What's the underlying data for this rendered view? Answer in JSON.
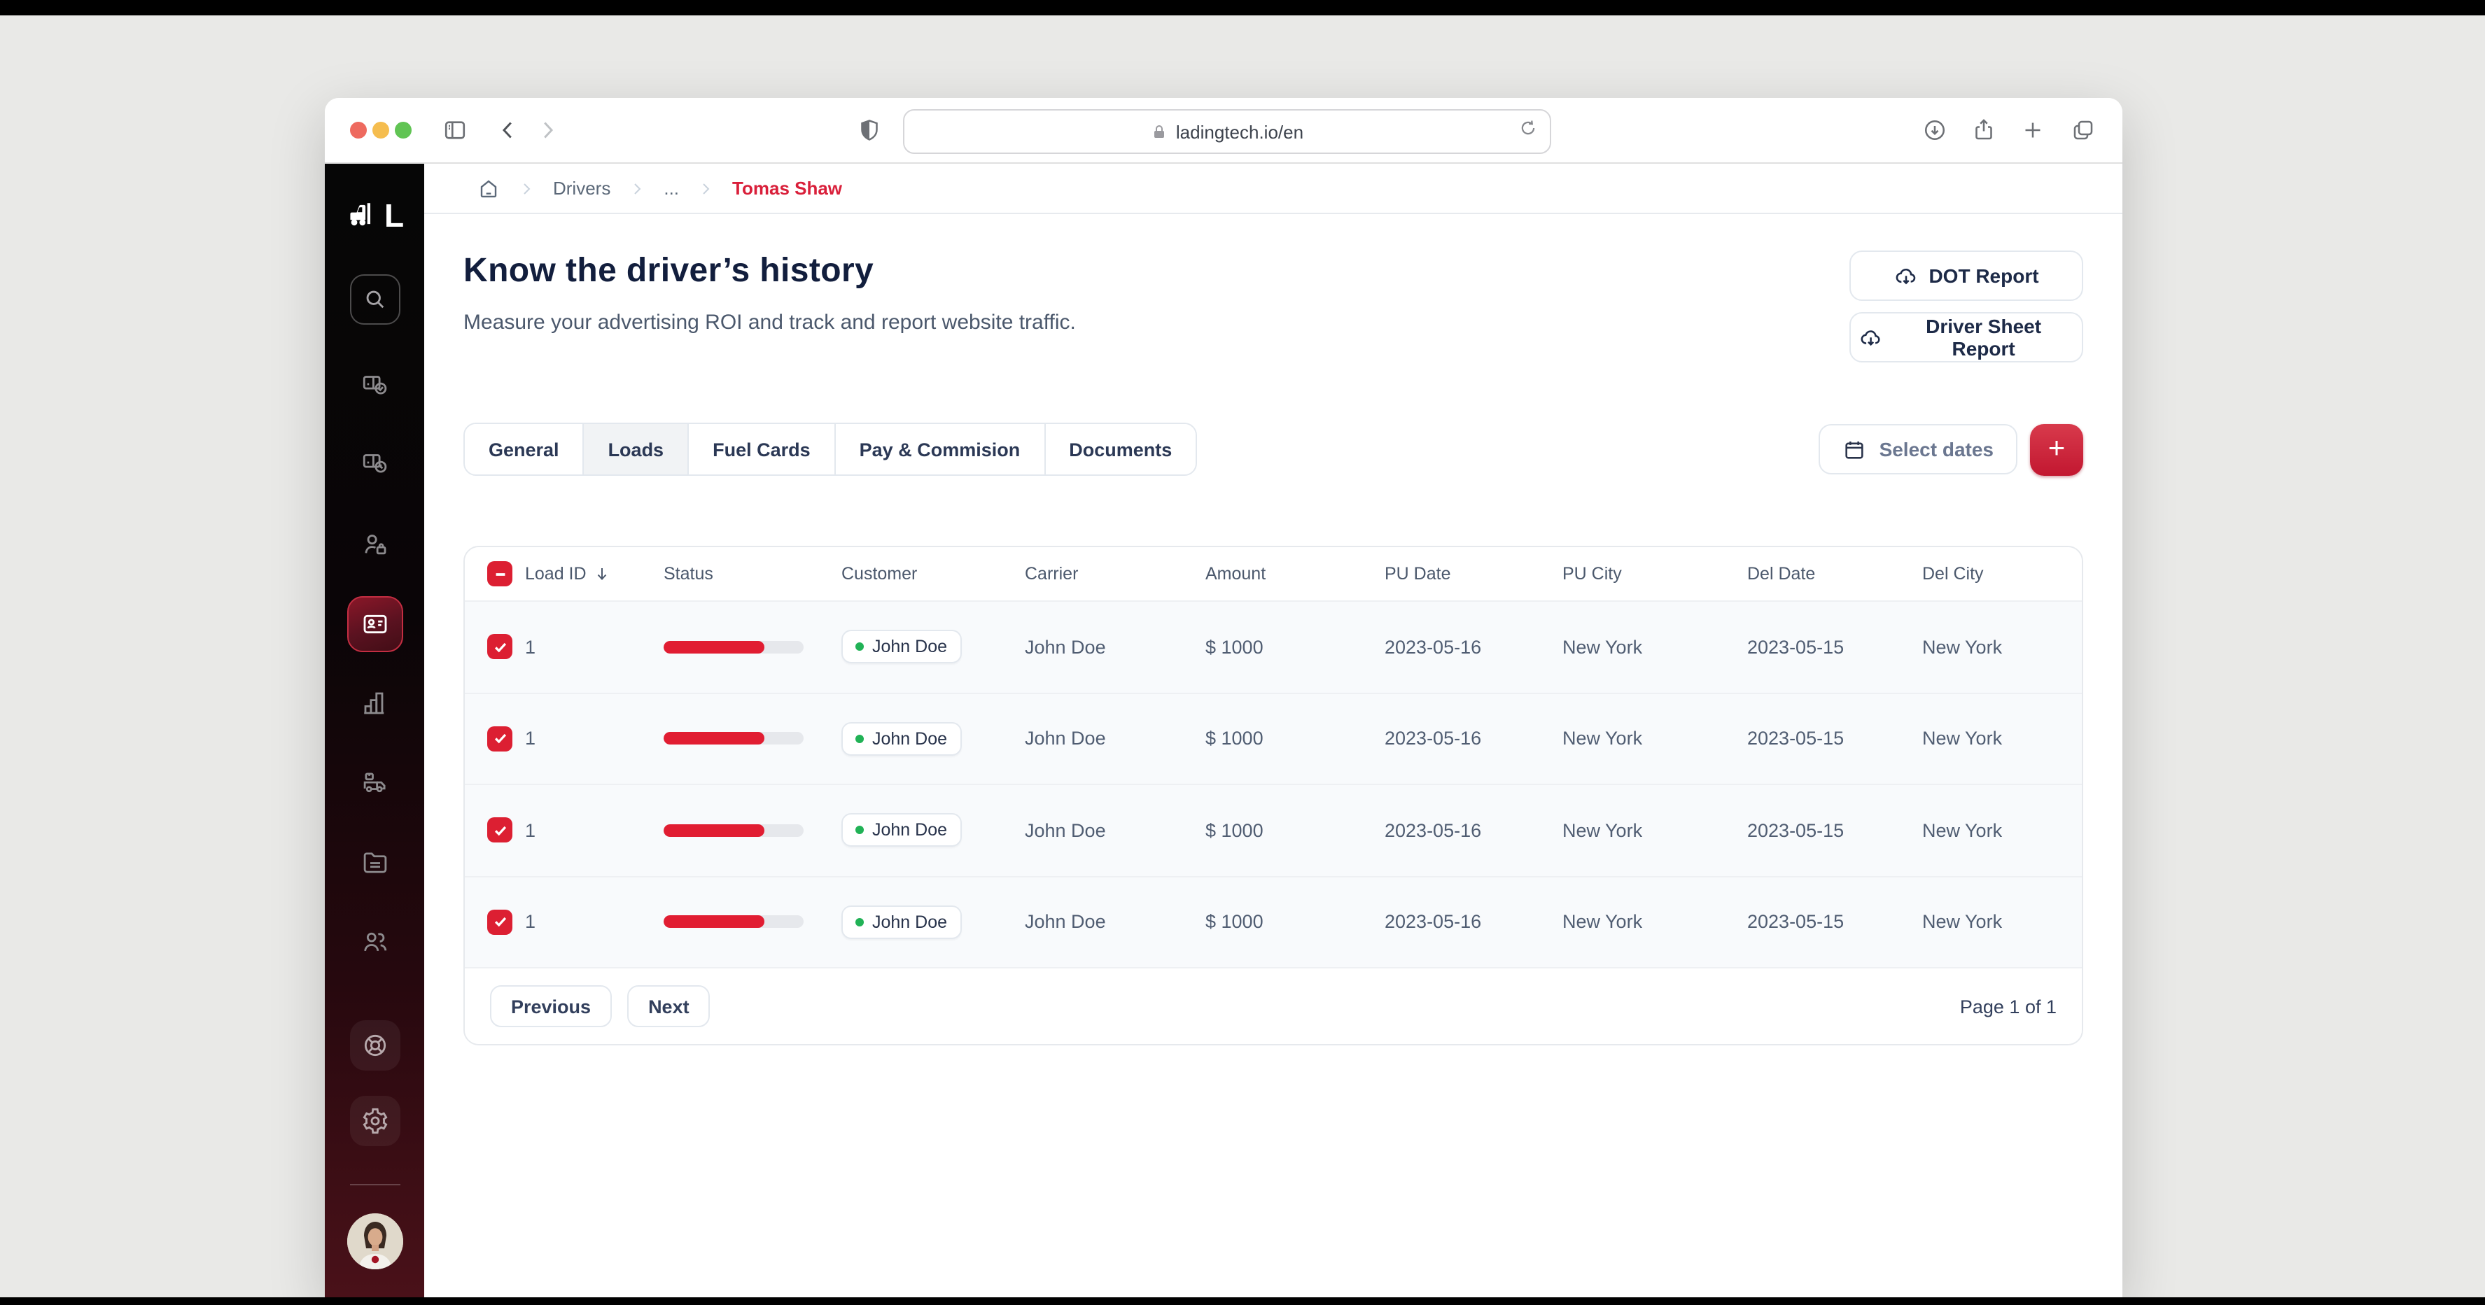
{
  "browser": {
    "url": "ladingtech.io/en"
  },
  "breadcrumb": {
    "items": [
      "Drivers",
      "...",
      "Tomas Shaw"
    ]
  },
  "page": {
    "title": "Know the driver’s history",
    "subtitle": "Measure your advertising ROI and track and report website traffic.",
    "actions": [
      {
        "label": "DOT Report"
      },
      {
        "label": "Driver Sheet Report"
      }
    ]
  },
  "tabs": {
    "items": [
      "General",
      "Loads",
      "Fuel Cards",
      "Pay & Commision",
      "Documents"
    ],
    "active": "Loads"
  },
  "filters": {
    "select_dates_label": "Select dates",
    "add_label": "+"
  },
  "table": {
    "columns": [
      "Load ID",
      "Status",
      "Customer",
      "Carrier",
      "Amount",
      "PU Date",
      "PU City",
      "Del Date",
      "Del City"
    ],
    "sorted_by": "Load ID",
    "rows": [
      {
        "load_id": "1",
        "status_pct": 72,
        "customer": "John Doe",
        "carrier": "John Doe",
        "amount": "$ 1000",
        "pu_date": "2023-05-16",
        "pu_city": "New York",
        "del_date": "2023-05-15",
        "del_city": "New York"
      },
      {
        "load_id": "1",
        "status_pct": 72,
        "customer": "John Doe",
        "carrier": "John Doe",
        "amount": "$ 1000",
        "pu_date": "2023-05-16",
        "pu_city": "New York",
        "del_date": "2023-05-15",
        "del_city": "New York"
      },
      {
        "load_id": "1",
        "status_pct": 72,
        "customer": "John Doe",
        "carrier": "John Doe",
        "amount": "$ 1000",
        "pu_date": "2023-05-16",
        "pu_city": "New York",
        "del_date": "2023-05-15",
        "del_city": "New York"
      },
      {
        "load_id": "1",
        "status_pct": 72,
        "customer": "John Doe",
        "carrier": "John Doe",
        "amount": "$ 1000",
        "pu_date": "2023-05-16",
        "pu_city": "New York",
        "del_date": "2023-05-15",
        "del_city": "New York"
      }
    ],
    "pagination": {
      "previous": "Previous",
      "next": "Next",
      "info": "Page 1 of 1"
    }
  },
  "colors": {
    "accent_red": "#dc1f32",
    "progress_red": "#e11d32",
    "breadcrumb_active": "#d91f3a",
    "badge_dot_green": "#21b256",
    "title_navy": "#121e3d",
    "sidebar_maroon": "#4a1119",
    "desktop_grey": "#e9e9e7"
  }
}
